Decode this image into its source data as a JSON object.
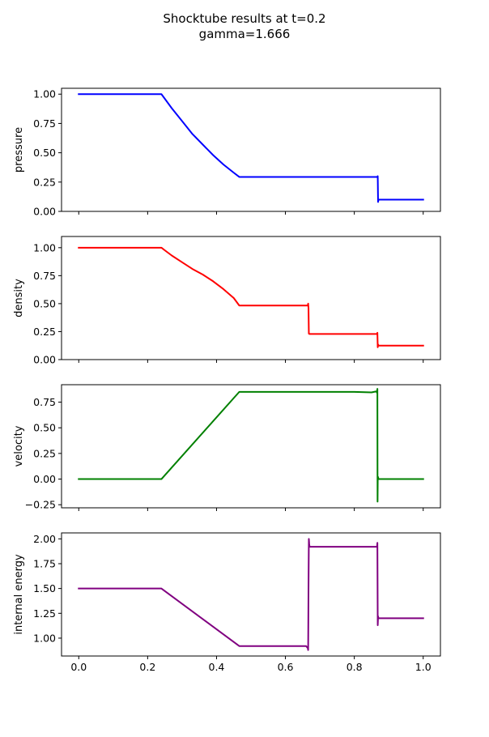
{
  "chart_data": {
    "title": [
      "Shocktube results at t=0.2",
      "gamma=1.666"
    ],
    "type": "line",
    "xlim": [
      -0.05,
      1.05
    ],
    "x_ticks": [
      0.0,
      0.2,
      0.4,
      0.6,
      0.8,
      1.0
    ],
    "x_tick_labels": [
      "0.0",
      "0.2",
      "0.4",
      "0.6",
      "0.8",
      "1.0"
    ],
    "shared_x": true,
    "grid": false,
    "subplots": [
      {
        "name": "pressure",
        "ylabel": "pressure",
        "color": "#0000ff",
        "ylim": [
          0.0,
          1.05
        ],
        "y_ticks": [
          0.0,
          0.25,
          0.5,
          0.75,
          1.0
        ],
        "y_tick_labels": [
          "0.00",
          "0.25",
          "0.50",
          "0.75",
          "1.00"
        ],
        "series": [
          {
            "name": "pressure",
            "x": [
              0.0,
              0.24,
              0.25,
              0.27,
              0.3,
              0.33,
              0.36,
              0.39,
              0.42,
              0.45,
              0.466,
              0.5,
              0.6,
              0.7,
              0.8,
              0.867,
              0.868,
              0.869,
              0.87,
              0.872,
              0.9,
              1.0
            ],
            "y": [
              1.0,
              1.0,
              0.96,
              0.88,
              0.77,
              0.66,
              0.57,
              0.48,
              0.4,
              0.33,
              0.294,
              0.294,
              0.294,
              0.294,
              0.294,
              0.294,
              0.3,
              0.08,
              0.1,
              0.1,
              0.1,
              0.1
            ]
          }
        ]
      },
      {
        "name": "density",
        "ylabel": "density",
        "color": "#ff0000",
        "ylim": [
          0.0,
          1.1
        ],
        "y_ticks": [
          0.0,
          0.25,
          0.5,
          0.75,
          1.0
        ],
        "y_tick_labels": [
          "0.00",
          "0.25",
          "0.50",
          "0.75",
          "1.00"
        ],
        "series": [
          {
            "name": "density",
            "x": [
              0.0,
              0.24,
              0.25,
              0.27,
              0.3,
              0.33,
              0.36,
              0.39,
              0.42,
              0.45,
              0.466,
              0.5,
              0.6,
              0.665,
              0.666,
              0.667,
              0.668,
              0.67,
              0.7,
              0.8,
              0.866,
              0.867,
              0.868,
              0.869,
              0.87,
              0.872,
              0.9,
              1.0
            ],
            "y": [
              1.0,
              1.0,
              0.976,
              0.93,
              0.87,
              0.81,
              0.76,
              0.7,
              0.63,
              0.55,
              0.483,
              0.483,
              0.483,
              0.483,
              0.5,
              0.46,
              0.232,
              0.229,
              0.229,
              0.229,
              0.229,
              0.24,
              0.11,
              0.135,
              0.125,
              0.125,
              0.125,
              0.125
            ]
          }
        ]
      },
      {
        "name": "velocity",
        "ylabel": "velocity",
        "color": "#008000",
        "ylim": [
          -0.28,
          0.92
        ],
        "y_ticks": [
          -0.25,
          0.0,
          0.25,
          0.5,
          0.75
        ],
        "y_tick_labels": [
          "−0.25",
          "0.00",
          "0.25",
          "0.50",
          "0.75"
        ],
        "series": [
          {
            "name": "velocity",
            "x": [
              0.0,
              0.24,
              0.466,
              0.5,
              0.6,
              0.7,
              0.8,
              0.85,
              0.864,
              0.866,
              0.867,
              0.8675,
              0.868,
              0.869,
              0.87,
              0.872,
              0.9,
              1.0
            ],
            "y": [
              0.0,
              0.0,
              0.85,
              0.85,
              0.85,
              0.85,
              0.85,
              0.845,
              0.855,
              0.84,
              0.88,
              -0.22,
              0.0,
              0.02,
              0.0,
              0.0,
              0.0,
              0.0
            ]
          }
        ]
      },
      {
        "name": "internal energy",
        "ylabel": "internal energy",
        "color": "#800080",
        "ylim": [
          0.82,
          2.06
        ],
        "y_ticks": [
          1.0,
          1.25,
          1.5,
          1.75,
          2.0
        ],
        "y_tick_labels": [
          "1.00",
          "1.25",
          "1.50",
          "1.75",
          "2.00"
        ],
        "series": [
          {
            "name": "internal energy",
            "x": [
              0.0,
              0.24,
              0.466,
              0.5,
              0.6,
              0.66,
              0.665,
              0.666,
              0.667,
              0.668,
              0.669,
              0.67,
              0.7,
              0.8,
              0.86,
              0.866,
              0.867,
              0.868,
              0.869,
              0.87,
              0.872,
              0.9,
              1.0
            ],
            "y": [
              1.5,
              1.5,
              0.92,
              0.92,
              0.92,
              0.92,
              0.9,
              0.88,
              1.5,
              2.0,
              1.95,
              1.92,
              1.92,
              1.92,
              1.92,
              1.92,
              1.96,
              1.13,
              1.22,
              1.2,
              1.2,
              1.2,
              1.2
            ]
          }
        ]
      }
    ]
  }
}
